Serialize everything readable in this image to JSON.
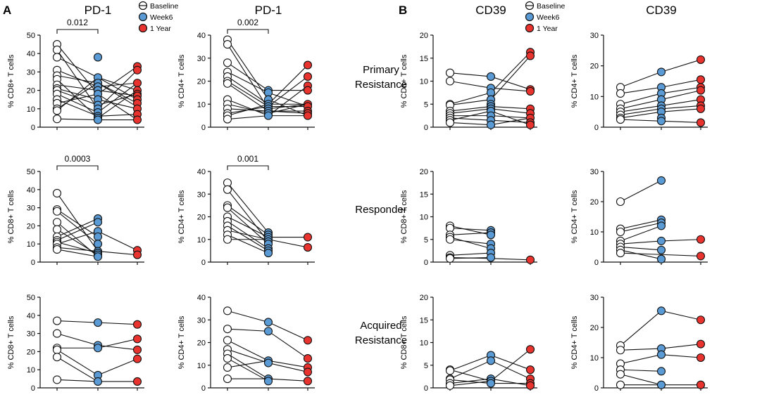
{
  "panel_letters": [
    "A",
    "B"
  ],
  "row_labels": [
    "Primary\nResistance",
    "Responder",
    "Acquired\nResistance"
  ],
  "legend": {
    "entries": [
      {
        "label": "Baseline",
        "style": "open"
      },
      {
        "label": "Week6",
        "style": "blue"
      },
      {
        "label": "1 Year",
        "style": "red"
      }
    ],
    "colors": {
      "week6": "#5b9bd5",
      "year1": "#e8332e",
      "baseline": "#ffffff",
      "stroke": "#111111"
    }
  },
  "chart_data": [
    {
      "type": "scatter",
      "title": "PD-1",
      "ylabel": "% CD8+ T cells",
      "ylim": [
        0,
        50
      ],
      "ticks": [
        0,
        10,
        20,
        30,
        40,
        50
      ],
      "pvalue": "0.012",
      "columns": {
        "baseline": [
          45,
          42,
          38,
          31,
          28,
          26,
          23,
          21,
          20,
          18,
          15,
          13,
          10,
          9,
          4.5
        ],
        "week6": [
          38,
          27,
          24,
          22,
          20,
          18,
          15,
          12,
          10,
          8,
          6,
          5,
          4
        ],
        "year1": [
          33,
          31,
          24,
          20,
          18,
          17,
          15,
          13,
          10,
          7,
          4
        ]
      },
      "pairs": [
        [
          45,
          18,
          33
        ],
        [
          42,
          10,
          31
        ],
        [
          38,
          27,
          15
        ],
        [
          31,
          22,
          24
        ],
        [
          28,
          24,
          13
        ],
        [
          26,
          5,
          20
        ],
        [
          23,
          20,
          17
        ],
        [
          21,
          15,
          10
        ],
        [
          20,
          12,
          18
        ],
        [
          18,
          8,
          24
        ],
        [
          15,
          6,
          7
        ],
        [
          13,
          18,
          4
        ],
        [
          10,
          24,
          11
        ],
        [
          9,
          27,
          20
        ],
        [
          4.5,
          4,
          4
        ]
      ]
    },
    {
      "type": "scatter",
      "title": "PD-1",
      "ylabel": "% CD4+ T cells",
      "ylim": [
        0,
        40
      ],
      "ticks": [
        0,
        10,
        20,
        30,
        40
      ],
      "pvalue": "0.002",
      "columns": {
        "baseline": [
          38,
          36,
          28,
          24,
          22,
          20,
          19,
          12,
          10,
          8,
          6,
          5,
          3.5
        ],
        "week6": [
          16,
          15,
          12,
          10,
          9,
          8,
          7,
          6,
          5
        ],
        "year1": [
          27,
          22,
          18,
          16,
          10,
          9,
          7,
          6,
          5
        ]
      },
      "pairs": [
        [
          38,
          12,
          5
        ],
        [
          36,
          8,
          10
        ],
        [
          28,
          16,
          16
        ],
        [
          24,
          15,
          9
        ],
        [
          22,
          10,
          27
        ],
        [
          20,
          9,
          22
        ],
        [
          19,
          7,
          7
        ],
        [
          12,
          5,
          18
        ],
        [
          10,
          6,
          10
        ],
        [
          8,
          7,
          6
        ],
        [
          6,
          9,
          9
        ],
        [
          5,
          10,
          10
        ],
        [
          3.5,
          5,
          5
        ]
      ]
    },
    {
      "type": "scatter",
      "title": "CD39",
      "ylabel": "% CD8+ T cells",
      "ylim": [
        0,
        20
      ],
      "ticks": [
        0,
        5,
        10,
        15,
        20
      ],
      "columns": {
        "baseline": [
          11.8,
          10,
          5,
          4.8,
          3.5,
          3,
          2.5,
          2,
          1.5,
          1
        ],
        "week6": [
          11,
          8.5,
          7.5,
          6,
          5,
          4.5,
          4,
          3.5,
          2.5,
          1.5,
          0.5
        ],
        "year1": [
          16.3,
          15.5,
          8.2,
          7.8,
          4,
          3,
          2,
          1,
          0.5
        ]
      },
      "pairs": [
        [
          11.8,
          11,
          8.2
        ],
        [
          10,
          8.5,
          7.8
        ],
        [
          5,
          7.5,
          16.3
        ],
        [
          4.8,
          6,
          15.5
        ],
        [
          3.5,
          4.5,
          4
        ],
        [
          3,
          4,
          3
        ],
        [
          2.5,
          2.5,
          2
        ],
        [
          2,
          1.5,
          1
        ],
        [
          1.5,
          3.5,
          0.5
        ],
        [
          1,
          0.5,
          2
        ]
      ]
    },
    {
      "type": "scatter",
      "title": "CD39",
      "ylabel": "% CD4+ T cells",
      "ylim": [
        0,
        30
      ],
      "ticks": [
        0,
        10,
        20,
        30
      ],
      "columns": {
        "baseline": [
          13,
          11,
          7.5,
          6,
          5,
          4,
          3,
          2.5
        ],
        "week6": [
          18,
          13,
          11,
          9,
          7,
          6,
          5,
          3,
          2
        ],
        "year1": [
          22,
          15.5,
          13,
          12,
          9,
          7,
          6,
          1.5
        ]
      },
      "pairs": [
        [
          13,
          18,
          22
        ],
        [
          11,
          13,
          15.5
        ],
        [
          7.5,
          11,
          13
        ],
        [
          6,
          9,
          12
        ],
        [
          5,
          7,
          9
        ],
        [
          4,
          6,
          7
        ],
        [
          3,
          5,
          6
        ],
        [
          2.5,
          2,
          1.5
        ]
      ]
    },
    {
      "type": "scatter",
      "title": "",
      "ylabel": "% CD8+ T cells",
      "ylim": [
        0,
        50
      ],
      "ticks": [
        0,
        10,
        20,
        30,
        40,
        50
      ],
      "pvalue": "0.0003",
      "columns": {
        "baseline": [
          38,
          29,
          28,
          22,
          18,
          14,
          12,
          11,
          10,
          8,
          7
        ],
        "week6": [
          24,
          22,
          17,
          14,
          10,
          6,
          5,
          4,
          3
        ],
        "year1": [
          6.5,
          4
        ]
      },
      "pairs": [
        [
          38,
          6
        ],
        [
          29,
          14
        ],
        [
          28,
          10
        ],
        [
          22,
          3
        ],
        [
          18,
          4
        ],
        [
          14,
          24
        ],
        [
          12,
          22
        ],
        [
          11,
          5
        ],
        [
          10,
          17,
          6.5
        ],
        [
          8,
          6,
          4
        ],
        [
          7,
          3
        ]
      ]
    },
    {
      "type": "scatter",
      "title": "",
      "ylabel": "% CD4+ T cells",
      "ylim": [
        0,
        40
      ],
      "ticks": [
        0,
        10,
        20,
        30,
        40
      ],
      "pvalue": "0.001",
      "columns": {
        "baseline": [
          35,
          32,
          25,
          24,
          20,
          18,
          16,
          14,
          12,
          10
        ],
        "week6": [
          13,
          12,
          11,
          10,
          9,
          8,
          6,
          5,
          4
        ],
        "year1": [
          11,
          6.5
        ]
      },
      "pairs": [
        [
          35,
          13
        ],
        [
          32,
          9
        ],
        [
          25,
          12
        ],
        [
          24,
          8
        ],
        [
          20,
          11,
          11
        ],
        [
          18,
          6
        ],
        [
          16,
          5
        ],
        [
          14,
          10,
          6.5
        ],
        [
          12,
          4
        ],
        [
          10,
          10
        ]
      ]
    },
    {
      "type": "scatter",
      "title": "",
      "ylabel": "% CD8+ T cells",
      "ylim": [
        0,
        20
      ],
      "ticks": [
        0,
        5,
        10,
        15,
        20
      ],
      "columns": {
        "baseline": [
          8,
          7.5,
          6,
          5.5,
          5,
          1.5,
          1,
          0.8
        ],
        "week6": [
          7,
          6.5,
          6,
          4,
          3,
          2,
          1
        ],
        "year1": [
          0.5
        ]
      },
      "pairs": [
        [
          8,
          6
        ],
        [
          7.5,
          7
        ],
        [
          6,
          6.5
        ],
        [
          5.5,
          3
        ],
        [
          5,
          4
        ],
        [
          1.5,
          2
        ],
        [
          1,
          0.8,
          0.5
        ],
        [
          0.8,
          1
        ]
      ]
    },
    {
      "type": "scatter",
      "title": "",
      "ylabel": "% CD4+ T cells",
      "ylim": [
        0,
        30
      ],
      "ticks": [
        0,
        10,
        20,
        30
      ],
      "columns": {
        "baseline": [
          20,
          11,
          10,
          7,
          6,
          5,
          4,
          3
        ],
        "week6": [
          27,
          14,
          13,
          12,
          7,
          4,
          1
        ],
        "year1": [
          7.5,
          2
        ]
      },
      "pairs": [
        [
          20,
          27
        ],
        [
          11,
          14
        ],
        [
          10,
          13
        ],
        [
          7,
          12
        ],
        [
          6,
          7,
          7.5
        ],
        [
          5,
          4
        ],
        [
          4,
          1
        ],
        [
          3,
          2.5,
          2
        ]
      ]
    },
    {
      "type": "scatter",
      "title": "",
      "ylabel": "% CD8+ T cells",
      "ylim": [
        0,
        50
      ],
      "ticks": [
        0,
        10,
        20,
        30,
        40,
        50
      ],
      "columns": {
        "baseline": [
          37,
          30,
          22,
          21,
          17,
          4.5
        ],
        "week6": [
          36,
          23.5,
          22,
          7,
          3.5
        ],
        "year1": [
          35,
          27,
          21,
          16,
          3.5
        ]
      },
      "pairs": [
        [
          37,
          36,
          35
        ],
        [
          30,
          23.5,
          21
        ],
        [
          22,
          22,
          27
        ],
        [
          21,
          7,
          16
        ],
        [
          17,
          3.5,
          3.5
        ],
        [
          4.5,
          3.5
        ]
      ]
    },
    {
      "type": "scatter",
      "title": "",
      "ylabel": "% CD4+ T cells",
      "ylim": [
        0,
        40
      ],
      "ticks": [
        0,
        10,
        20,
        30,
        40
      ],
      "columns": {
        "baseline": [
          34,
          26,
          21,
          17,
          15,
          13,
          9,
          4
        ],
        "week6": [
          29,
          25,
          12,
          11,
          4,
          3
        ],
        "year1": [
          21,
          13,
          9,
          7,
          3
        ]
      },
      "pairs": [
        [
          34,
          29,
          21
        ],
        [
          26,
          25,
          13
        ],
        [
          21,
          12,
          9
        ],
        [
          17,
          11,
          7
        ],
        [
          15,
          4,
          3
        ],
        [
          13,
          3
        ],
        [
          9,
          12
        ],
        [
          4,
          4
        ]
      ]
    },
    {
      "type": "scatter",
      "title": "",
      "ylabel": "% CD8+ T cells",
      "ylim": [
        0,
        20
      ],
      "ticks": [
        0,
        5,
        10,
        15,
        20
      ],
      "columns": {
        "baseline": [
          4,
          3.8,
          2,
          1.8,
          1,
          0.5
        ],
        "week6": [
          7.2,
          6,
          2,
          1.5,
          1
        ],
        "year1": [
          8.5,
          4,
          2,
          1,
          0.5
        ]
      },
      "pairs": [
        [
          4,
          1.5,
          8.5
        ],
        [
          3.8,
          7.2,
          4
        ],
        [
          2,
          6,
          2
        ],
        [
          1.8,
          1,
          1
        ],
        [
          1,
          2,
          0.5
        ],
        [
          0.5,
          1.5
        ]
      ]
    },
    {
      "type": "scatter",
      "title": "",
      "ylabel": "% CD4+ T cells",
      "ylim": [
        0,
        30
      ],
      "ticks": [
        0,
        10,
        20,
        30
      ],
      "columns": {
        "baseline": [
          14,
          12.5,
          8,
          6,
          4.5,
          1
        ],
        "week6": [
          25.5,
          13,
          11,
          5.5,
          1
        ],
        "year1": [
          22.5,
          14.5,
          10,
          1
        ]
      },
      "pairs": [
        [
          14,
          25.5,
          22.5
        ],
        [
          12.5,
          13,
          14.5
        ],
        [
          8,
          11,
          10
        ],
        [
          6,
          5.5
        ],
        [
          4.5,
          1,
          1
        ],
        [
          1,
          1
        ]
      ]
    }
  ]
}
